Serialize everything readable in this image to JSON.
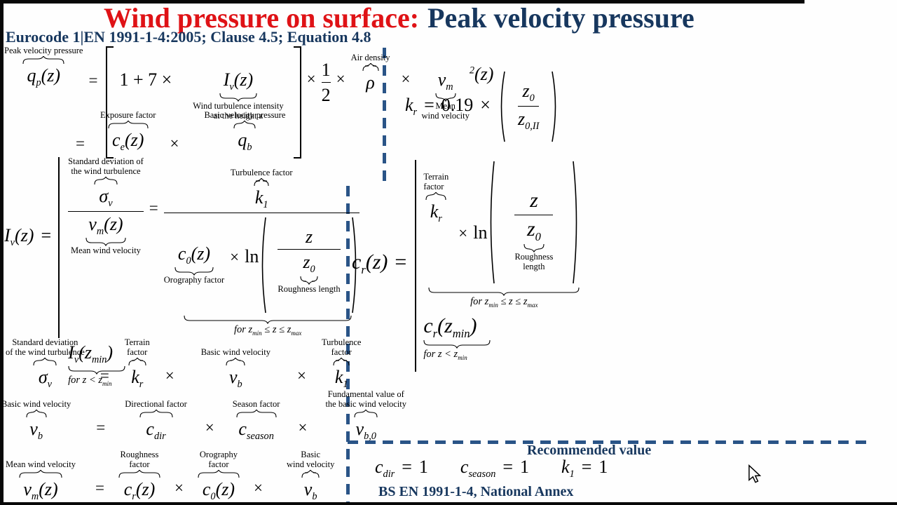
{
  "title": {
    "red": "Wind pressure on surface:",
    "blue": "Peak velocity pressure"
  },
  "subtitle": "Eurocode 1|EN 1991-1-4:2005; Clause 4.5; Equation 4.8",
  "footer": "BS EN 1991-1-4, National Annex",
  "recommended": {
    "title": "Recommended value",
    "one": "1"
  },
  "ops": {
    "eq": "=",
    "times": "×",
    "plus": "1 + 7 ×",
    "ln": "ln",
    "kr_coef": "0.19"
  },
  "sym": {
    "q": "q",
    "p": "p",
    "argz": "(z)",
    "I": "I",
    "v": "v",
    "m": "m",
    "rho": "ρ",
    "one": "1",
    "two": "2",
    "c": "c",
    "e": "e",
    "b": "b",
    "sigma": "σ",
    "k": "k",
    "zero": "0",
    "r": "r",
    "z": "z",
    "dir": "dir",
    "season": "season",
    "b0": "b,0",
    "zeroII": "0,II",
    "min": "min",
    "openz": "(z",
    "close": ")"
  },
  "cond": {
    "range_a": "for z",
    "range_min": "min",
    "range_b": " ≤ z ≤ z",
    "range_max": "max",
    "lt_a": "for z < z",
    "lt_min": "min"
  },
  "labels": {
    "peak": "Peak velocity pressure",
    "turb_int1": "Wind turbulence intensity",
    "turb_int2": "at the height z",
    "air": "Air density",
    "mean1": "Mean",
    "mean2": "wind velocity",
    "exposure": "Exposure factor",
    "basic_vp": "Basic velocity pressure",
    "std1": "Standard deviation of",
    "std2": "the wind turbulence",
    "turb_factor": "Turbulence factor",
    "mean_wv": "Mean wind velocity",
    "oro_factor": "Orography factor",
    "rough_len": "Roughness length",
    "rough_len1": "Roughness",
    "rough_len2": "length",
    "std_b1": "Standard deviation",
    "std_b2": "of the wind turbulence",
    "terrain1": "Terrain",
    "terrain2": "factor",
    "basic_wv": "Basic wind velocity",
    "turb1": "Turbulence",
    "turb2": "factor",
    "dir_factor": "Directional factor",
    "season_factor": "Season factor",
    "fund1": "Fundamental value of",
    "fund2": "the basic wind velocity",
    "rough_f1": "Roughness",
    "rough_f2": "factor",
    "oro1": "Orography",
    "oro2": "factor",
    "basic1": "Basic",
    "basic2": "wind velocity"
  },
  "colors": {
    "title_red": "#df1216",
    "navy": "#17375e",
    "dash_blue": "#2a5487",
    "frame_black": "#080808"
  }
}
